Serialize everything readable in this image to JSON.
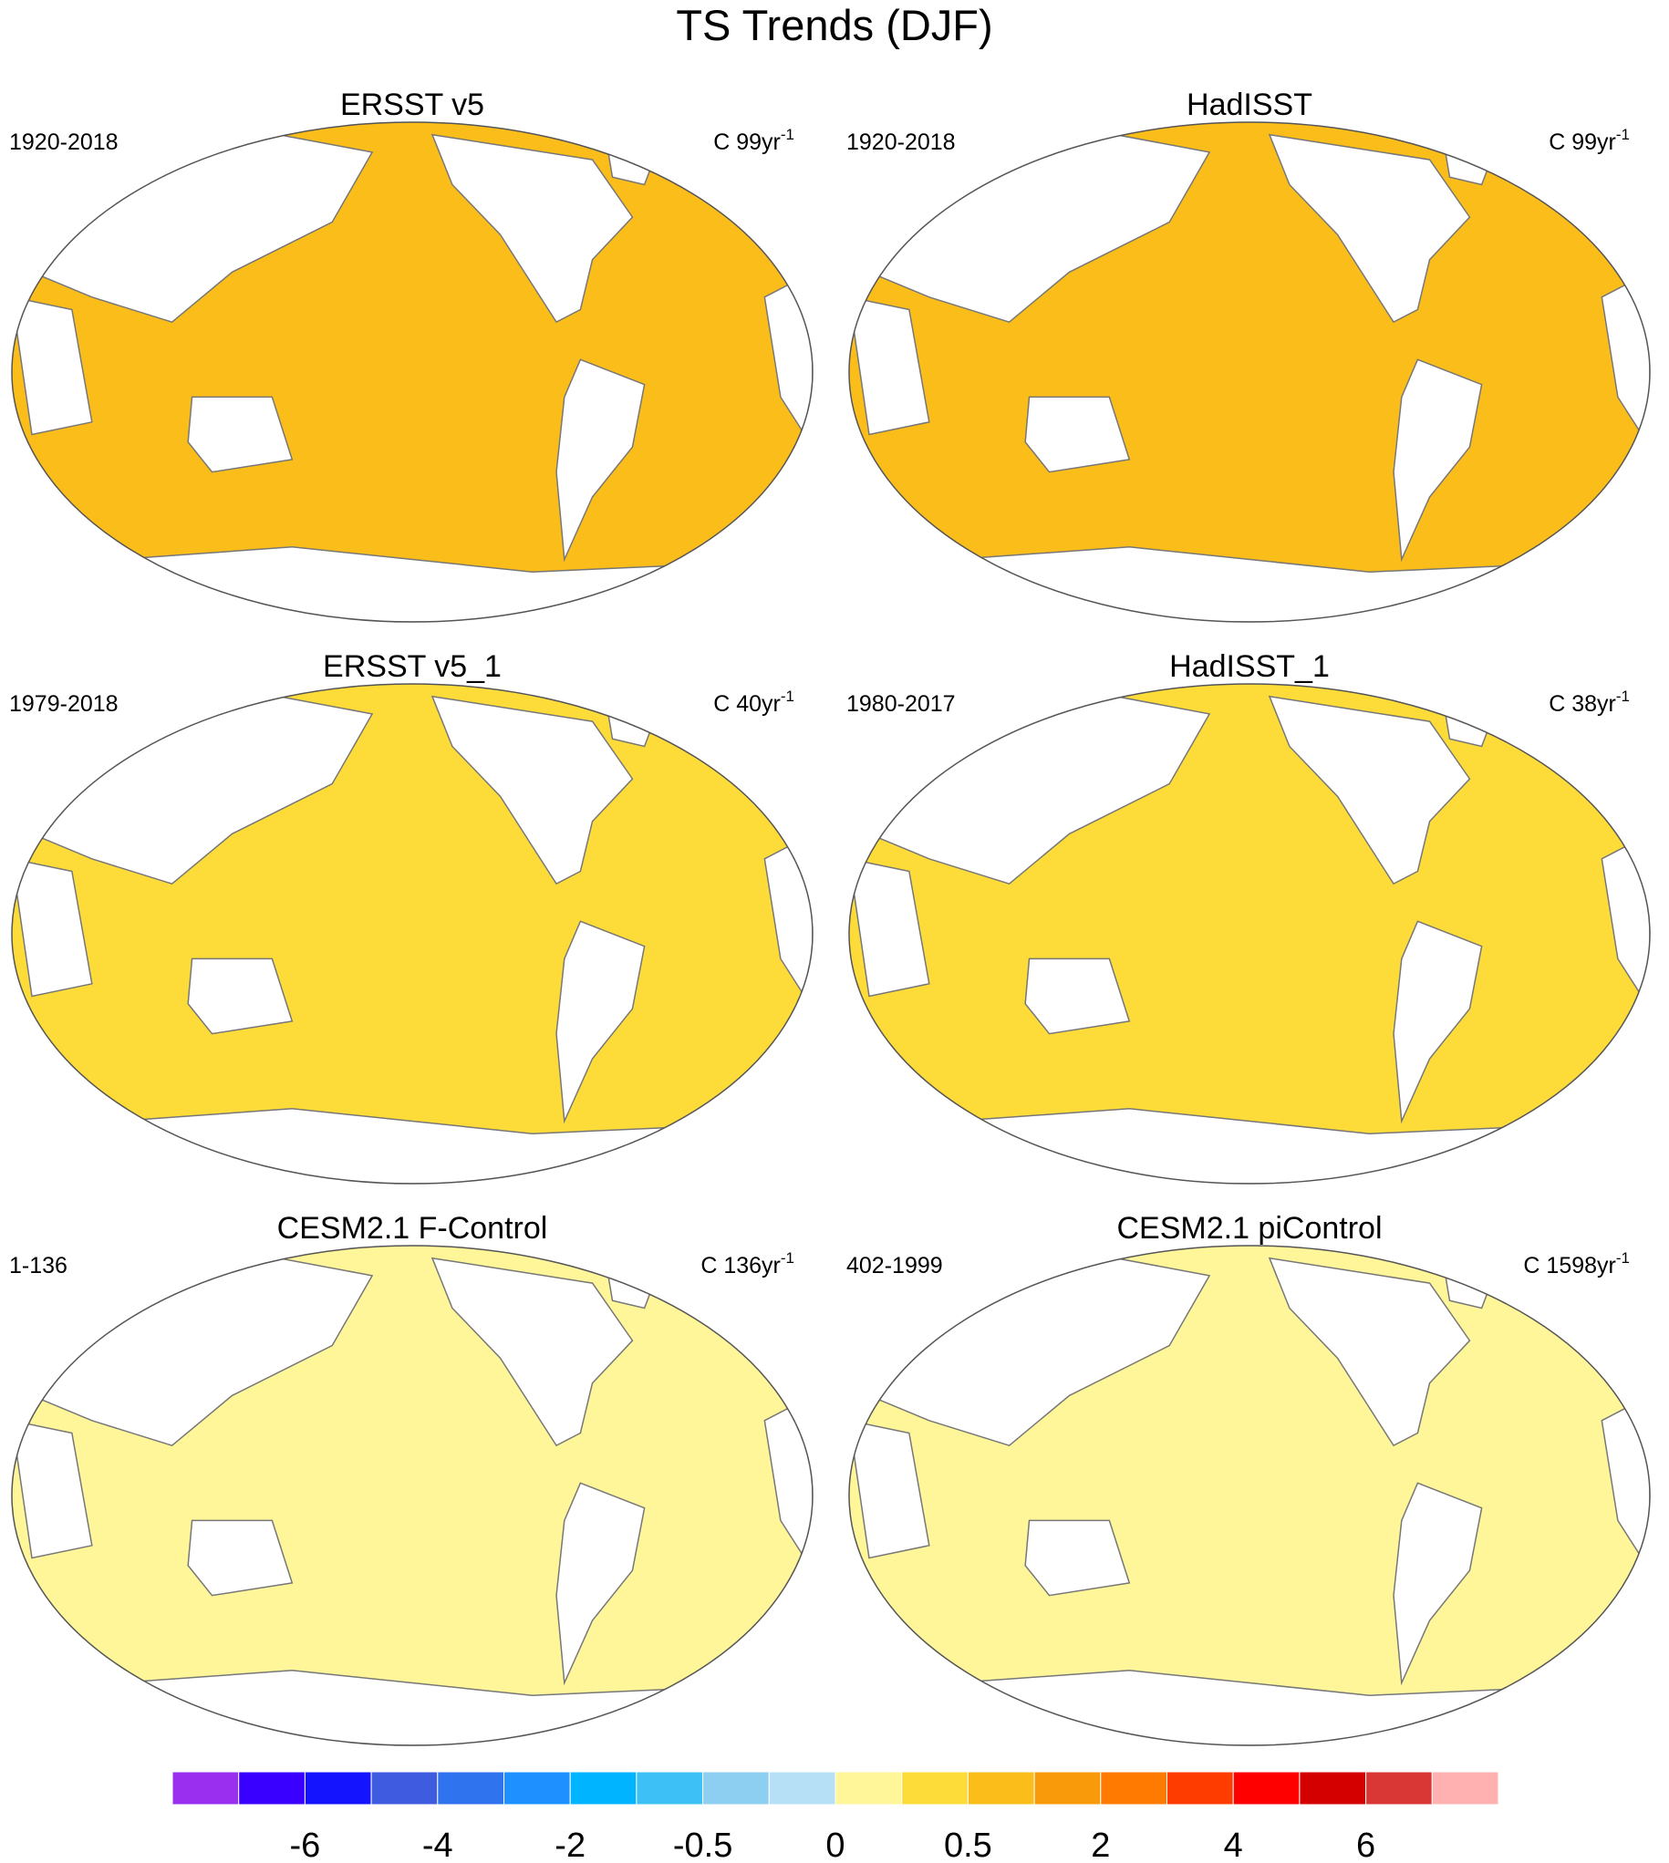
{
  "title": "TS Trends (DJF)",
  "panels": [
    {
      "title": "ERSST v5",
      "period": "1920-2018",
      "units": "C 99yr",
      "exponent": "-1",
      "fill": "#fbbd1a"
    },
    {
      "title": "HadISST",
      "period": "1920-2018",
      "units": "C 99yr",
      "exponent": "-1",
      "fill": "#fbbd1a"
    },
    {
      "title": "ERSST v5_1",
      "period": "1979-2018",
      "units": "C 40yr",
      "exponent": "-1",
      "fill": "#fddc3a"
    },
    {
      "title": "HadISST_1",
      "period": "1980-2017",
      "units": "C 38yr",
      "exponent": "-1",
      "fill": "#fddc3a"
    },
    {
      "title": "CESM2.1 F-Control",
      "period": "1-136",
      "units": "C 136yr",
      "exponent": "-1",
      "fill": "#fff69a"
    },
    {
      "title": "CESM2.1 piControl",
      "period": "402-1999",
      "units": "C 1598yr",
      "exponent": "-1",
      "fill": "#fff69a"
    }
  ],
  "colorbar": {
    "colors": [
      "#9b2ff0",
      "#3a00ff",
      "#1414ff",
      "#3f5be0",
      "#2f74ee",
      "#1e90ff",
      "#00b4ff",
      "#3cc0f5",
      "#8ccff0",
      "#b5e0f5",
      "#fff69a",
      "#fddc3a",
      "#fbbd1a",
      "#f99a0b",
      "#ff7a00",
      "#ff3c00",
      "#ff0000",
      "#d40000",
      "#d93636",
      "#ffb0b0"
    ],
    "ticks": [
      -6,
      -4,
      -2,
      -0.5,
      0,
      0.5,
      2,
      4,
      6
    ]
  }
}
